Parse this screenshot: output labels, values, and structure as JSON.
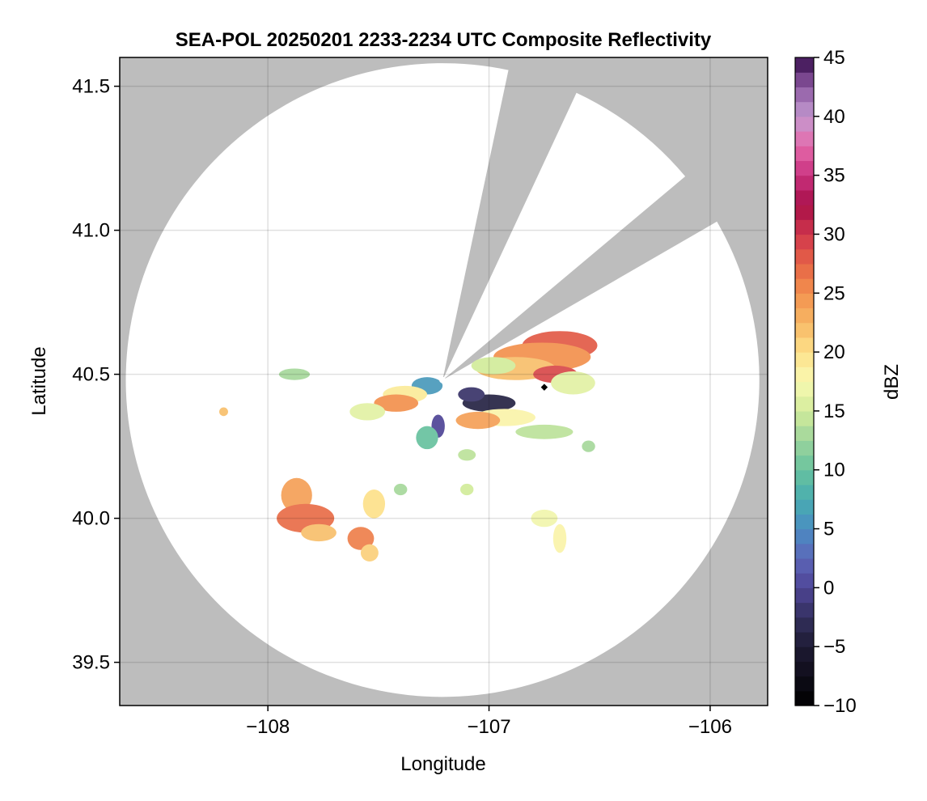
{
  "chart_data": {
    "type": "heatmap",
    "title": "SEA-POL 20250201 2233-2234 UTC Composite Reflectivity",
    "xlabel": "Longitude",
    "ylabel": "Latitude",
    "xlim": [
      -108.67,
      -105.74
    ],
    "ylim": [
      39.35,
      41.6
    ],
    "xticks": [
      {
        "value": -108,
        "label": "−108"
      },
      {
        "value": -107,
        "label": "−107"
      },
      {
        "value": -106,
        "label": "−106"
      }
    ],
    "yticks": [
      {
        "value": 39.5,
        "label": "39.5"
      },
      {
        "value": 40.0,
        "label": "40.0"
      },
      {
        "value": 40.5,
        "label": "40.5"
      },
      {
        "value": 41.0,
        "label": "41.0"
      },
      {
        "value": 41.5,
        "label": "41.5"
      }
    ],
    "grid": true,
    "radar": {
      "center_lon": -107.21,
      "center_lat": 40.48,
      "range_lat_deg": 1.1,
      "blocked_sectors_deg_cw_from_north": [
        [
          12,
          25
        ],
        [
          50,
          60
        ]
      ]
    },
    "marker": {
      "lon": -106.75,
      "lat": 40.455
    },
    "background_color": "#bdbdbd",
    "coverage_color": "#ffffff",
    "colorbar": {
      "label": "dBZ",
      "min": -10,
      "max": 45,
      "step": 2.5,
      "ticks": [
        {
          "value": -10,
          "label": "−10"
        },
        {
          "value": -5,
          "label": "−5"
        },
        {
          "value": 0,
          "label": "0"
        },
        {
          "value": 5,
          "label": "5"
        },
        {
          "value": 10,
          "label": "10"
        },
        {
          "value": 15,
          "label": "15"
        },
        {
          "value": 20,
          "label": "20"
        },
        {
          "value": 25,
          "label": "25"
        },
        {
          "value": 30,
          "label": "30"
        },
        {
          "value": 35,
          "label": "35"
        },
        {
          "value": 40,
          "label": "40"
        },
        {
          "value": 45,
          "label": "45"
        }
      ],
      "stops": [
        {
          "value": -10,
          "color": "#000000"
        },
        {
          "value": -5,
          "color": "#1e1a33"
        },
        {
          "value": -2.5,
          "color": "#33305e"
        },
        {
          "value": 0,
          "color": "#4f4596"
        },
        {
          "value": 2.5,
          "color": "#5c66b8"
        },
        {
          "value": 5,
          "color": "#4a8dc2"
        },
        {
          "value": 7.5,
          "color": "#48adb0"
        },
        {
          "value": 10,
          "color": "#68c29f"
        },
        {
          "value": 12.5,
          "color": "#9cd49c"
        },
        {
          "value": 15,
          "color": "#d2ec9b"
        },
        {
          "value": 17.5,
          "color": "#f9f9b2"
        },
        {
          "value": 20,
          "color": "#fde18a"
        },
        {
          "value": 22.5,
          "color": "#f7b765"
        },
        {
          "value": 25,
          "color": "#f3914e"
        },
        {
          "value": 27.5,
          "color": "#e66446"
        },
        {
          "value": 30,
          "color": "#d0374c"
        },
        {
          "value": 32.5,
          "color": "#a80f48"
        },
        {
          "value": 35,
          "color": "#c9317f"
        },
        {
          "value": 37.5,
          "color": "#e56aab"
        },
        {
          "value": 40,
          "color": "#c39ad0"
        },
        {
          "value": 42.5,
          "color": "#8e5aa2"
        },
        {
          "value": 44,
          "color": "#5e2d74"
        },
        {
          "value": 45,
          "color": "#2f0a44"
        }
      ]
    },
    "echoes": [
      {
        "lon": -106.68,
        "lat": 40.6,
        "w": 0.17,
        "h": 0.05,
        "dbz": 28
      },
      {
        "lon": -106.76,
        "lat": 40.56,
        "w": 0.22,
        "h": 0.05,
        "dbz": 25
      },
      {
        "lon": -106.88,
        "lat": 40.52,
        "w": 0.18,
        "h": 0.04,
        "dbz": 22
      },
      {
        "lon": -106.7,
        "lat": 40.5,
        "w": 0.1,
        "h": 0.03,
        "dbz": 29
      },
      {
        "lon": -106.62,
        "lat": 40.47,
        "w": 0.1,
        "h": 0.04,
        "dbz": 16
      },
      {
        "lon": -106.98,
        "lat": 40.53,
        "w": 0.1,
        "h": 0.03,
        "dbz": 15
      },
      {
        "lon": -107.0,
        "lat": 40.4,
        "w": 0.12,
        "h": 0.03,
        "dbz": -4
      },
      {
        "lon": -107.08,
        "lat": 40.43,
        "w": 0.06,
        "h": 0.025,
        "dbz": -2
      },
      {
        "lon": -106.93,
        "lat": 40.35,
        "w": 0.14,
        "h": 0.03,
        "dbz": 18
      },
      {
        "lon": -107.05,
        "lat": 40.34,
        "w": 0.1,
        "h": 0.03,
        "dbz": 24
      },
      {
        "lon": -106.75,
        "lat": 40.3,
        "w": 0.13,
        "h": 0.025,
        "dbz": 14
      },
      {
        "lon": -107.28,
        "lat": 40.46,
        "w": 0.07,
        "h": 0.03,
        "dbz": 6
      },
      {
        "lon": -107.38,
        "lat": 40.43,
        "w": 0.1,
        "h": 0.03,
        "dbz": 19
      },
      {
        "lon": -107.42,
        "lat": 40.4,
        "w": 0.1,
        "h": 0.03,
        "dbz": 25
      },
      {
        "lon": -107.55,
        "lat": 40.37,
        "w": 0.08,
        "h": 0.03,
        "dbz": 16
      },
      {
        "lon": -107.23,
        "lat": 40.32,
        "w": 0.03,
        "h": 0.04,
        "dbz": 0
      },
      {
        "lon": -107.28,
        "lat": 40.28,
        "w": 0.05,
        "h": 0.04,
        "dbz": 10
      },
      {
        "lon": -107.88,
        "lat": 40.5,
        "w": 0.07,
        "h": 0.02,
        "dbz": 13
      },
      {
        "lon": -108.2,
        "lat": 40.37,
        "w": 0.02,
        "h": 0.015,
        "dbz": 22
      },
      {
        "lon": -107.87,
        "lat": 40.08,
        "w": 0.07,
        "h": 0.06,
        "dbz": 24
      },
      {
        "lon": -107.83,
        "lat": 40.0,
        "w": 0.13,
        "h": 0.05,
        "dbz": 27
      },
      {
        "lon": -107.77,
        "lat": 39.95,
        "w": 0.08,
        "h": 0.03,
        "dbz": 22
      },
      {
        "lon": -107.52,
        "lat": 40.05,
        "w": 0.05,
        "h": 0.05,
        "dbz": 20
      },
      {
        "lon": -107.58,
        "lat": 39.93,
        "w": 0.06,
        "h": 0.04,
        "dbz": 26
      },
      {
        "lon": -107.54,
        "lat": 39.88,
        "w": 0.04,
        "h": 0.03,
        "dbz": 21
      },
      {
        "lon": -106.75,
        "lat": 40.0,
        "w": 0.06,
        "h": 0.03,
        "dbz": 17
      },
      {
        "lon": -106.68,
        "lat": 39.93,
        "w": 0.03,
        "h": 0.05,
        "dbz": 18
      },
      {
        "lon": -107.1,
        "lat": 40.22,
        "w": 0.04,
        "h": 0.02,
        "dbz": 14
      },
      {
        "lon": -107.1,
        "lat": 40.1,
        "w": 0.03,
        "h": 0.02,
        "dbz": 15
      },
      {
        "lon": -107.4,
        "lat": 40.1,
        "w": 0.03,
        "h": 0.02,
        "dbz": 13
      },
      {
        "lon": -106.55,
        "lat": 40.25,
        "w": 0.03,
        "h": 0.02,
        "dbz": 13
      }
    ]
  }
}
